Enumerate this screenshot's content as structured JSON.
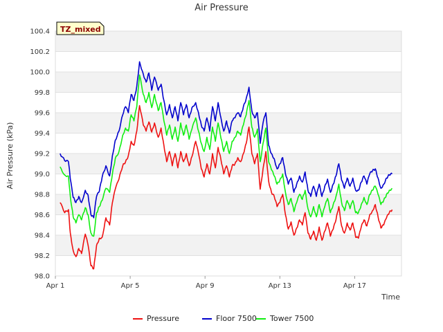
{
  "chart_data": {
    "type": "line",
    "title": "Air Pressure",
    "xlabel": "Time",
    "ylabel": "Air Pressure (kPa)",
    "badge": "TZ_mixed",
    "x_units": "days since Apr 1",
    "xlim": [
      0,
      18.5
    ],
    "ylim": [
      98.0,
      100.4
    ],
    "yticks": [
      98.0,
      98.2,
      98.4,
      98.6,
      98.8,
      99.0,
      99.2,
      99.4,
      99.6,
      99.8,
      100.0,
      100.2,
      100.4
    ],
    "ytick_labels": [
      "98.0",
      "98.2",
      "98.4",
      "98.6",
      "98.8",
      "99.0",
      "99.2",
      "99.4",
      "99.6",
      "99.8",
      "100.0",
      "100.2",
      "100.4"
    ],
    "xticks": [
      0,
      4,
      8,
      12,
      16
    ],
    "xtick_labels": [
      "Apr 1",
      "Apr 5",
      "Apr 9",
      "Apr 13",
      "Apr 17"
    ],
    "series": [
      {
        "name": "Pressure",
        "color": "#ee1111",
        "x": [
          0.25,
          0.5,
          0.7,
          0.8,
          0.95,
          1.1,
          1.25,
          1.4,
          1.6,
          1.75,
          1.9,
          2.05,
          2.2,
          2.35,
          2.5,
          2.7,
          2.9,
          3.05,
          3.2,
          3.4,
          3.6,
          3.75,
          3.9,
          4.05,
          4.2,
          4.35,
          4.5,
          4.7,
          4.85,
          5.0,
          5.15,
          5.3,
          5.5,
          5.65,
          5.8,
          5.95,
          6.1,
          6.25,
          6.4,
          6.55,
          6.7,
          6.85,
          7.0,
          7.15,
          7.3,
          7.5,
          7.65,
          7.8,
          7.95,
          8.1,
          8.25,
          8.4,
          8.55,
          8.7,
          8.85,
          9.0,
          9.15,
          9.3,
          9.45,
          9.6,
          9.75,
          9.9,
          10.05,
          10.2,
          10.35,
          10.5,
          10.65,
          10.8,
          10.95,
          11.1,
          11.25,
          11.4,
          11.55,
          11.7,
          11.85,
          12.0,
          12.15,
          12.3,
          12.45,
          12.6,
          12.75,
          12.9,
          13.05,
          13.2,
          13.35,
          13.5,
          13.65,
          13.8,
          13.95,
          14.1,
          14.25,
          14.4,
          14.55,
          14.7,
          14.85,
          15.0,
          15.15,
          15.3,
          15.45,
          15.6,
          15.75,
          15.9,
          16.05,
          16.2,
          16.35,
          16.5,
          16.65,
          16.8,
          16.95,
          17.1,
          17.25,
          17.4,
          17.55,
          17.7,
          17.85,
          18.0
        ],
        "values": [
          98.72,
          98.62,
          98.65,
          98.42,
          98.25,
          98.19,
          98.27,
          98.22,
          98.41,
          98.3,
          98.1,
          98.07,
          98.3,
          98.37,
          98.38,
          98.57,
          98.5,
          98.72,
          98.85,
          98.95,
          99.08,
          99.12,
          99.18,
          99.32,
          99.28,
          99.42,
          99.67,
          99.48,
          99.42,
          99.51,
          99.41,
          99.5,
          99.36,
          99.45,
          99.28,
          99.12,
          99.22,
          99.08,
          99.2,
          99.06,
          99.22,
          99.12,
          99.2,
          99.08,
          99.17,
          99.32,
          99.2,
          99.05,
          98.97,
          99.1,
          99.0,
          99.2,
          99.06,
          99.26,
          99.14,
          99.0,
          99.08,
          98.97,
          99.08,
          99.1,
          99.16,
          99.12,
          99.2,
          99.3,
          99.46,
          99.2,
          99.1,
          99.2,
          98.85,
          99.05,
          99.22,
          98.93,
          98.82,
          98.78,
          98.68,
          98.72,
          98.8,
          98.6,
          98.46,
          98.53,
          98.4,
          98.47,
          98.55,
          98.5,
          98.62,
          98.42,
          98.36,
          98.44,
          98.35,
          98.48,
          98.35,
          98.44,
          98.52,
          98.39,
          98.46,
          98.55,
          98.68,
          98.49,
          98.42,
          98.52,
          98.45,
          98.52,
          98.38,
          98.37,
          98.48,
          98.55,
          98.49,
          98.6,
          98.64,
          98.7,
          98.58,
          98.47,
          98.5,
          98.57,
          98.62,
          98.65
        ]
      },
      {
        "name": "Floor 7500",
        "color": "#0000cc",
        "x": [
          0.25,
          0.5,
          0.7,
          0.8,
          0.95,
          1.1,
          1.25,
          1.4,
          1.6,
          1.75,
          1.9,
          2.05,
          2.2,
          2.35,
          2.5,
          2.7,
          2.9,
          3.05,
          3.2,
          3.4,
          3.6,
          3.75,
          3.9,
          4.05,
          4.2,
          4.35,
          4.5,
          4.7,
          4.85,
          5.0,
          5.15,
          5.3,
          5.5,
          5.65,
          5.8,
          5.95,
          6.1,
          6.25,
          6.4,
          6.55,
          6.7,
          6.85,
          7.0,
          7.15,
          7.3,
          7.5,
          7.65,
          7.8,
          7.95,
          8.1,
          8.25,
          8.4,
          8.55,
          8.7,
          8.85,
          9.0,
          9.15,
          9.3,
          9.45,
          9.6,
          9.75,
          9.9,
          10.05,
          10.2,
          10.35,
          10.5,
          10.65,
          10.8,
          10.95,
          11.1,
          11.25,
          11.4,
          11.55,
          11.7,
          11.85,
          12.0,
          12.15,
          12.3,
          12.45,
          12.6,
          12.75,
          12.9,
          13.05,
          13.2,
          13.35,
          13.5,
          13.65,
          13.8,
          13.95,
          14.1,
          14.25,
          14.4,
          14.55,
          14.7,
          14.85,
          15.0,
          15.15,
          15.3,
          15.45,
          15.6,
          15.75,
          15.9,
          16.05,
          16.2,
          16.35,
          16.5,
          16.65,
          16.8,
          16.95,
          17.1,
          17.25,
          17.4,
          17.55,
          17.7,
          17.85,
          18.0
        ],
        "values": [
          99.2,
          99.13,
          99.12,
          98.95,
          98.77,
          98.72,
          98.78,
          98.72,
          98.84,
          98.79,
          98.6,
          98.57,
          98.78,
          98.83,
          98.97,
          99.08,
          98.98,
          99.18,
          99.33,
          99.42,
          99.58,
          99.66,
          99.6,
          99.78,
          99.72,
          99.86,
          100.1,
          99.98,
          99.9,
          99.99,
          99.82,
          99.95,
          99.82,
          99.88,
          99.72,
          99.58,
          99.68,
          99.55,
          99.66,
          99.52,
          99.7,
          99.58,
          99.68,
          99.55,
          99.65,
          99.7,
          99.6,
          99.48,
          99.42,
          99.55,
          99.42,
          99.66,
          99.52,
          99.7,
          99.55,
          99.42,
          99.52,
          99.4,
          99.52,
          99.55,
          99.6,
          99.56,
          99.66,
          99.74,
          99.85,
          99.62,
          99.55,
          99.6,
          99.3,
          99.5,
          99.6,
          99.28,
          99.2,
          99.15,
          99.05,
          99.1,
          99.16,
          99.0,
          98.9,
          98.96,
          98.82,
          98.9,
          98.98,
          98.92,
          99.02,
          98.84,
          98.78,
          98.88,
          98.78,
          98.9,
          98.78,
          98.88,
          98.95,
          98.82,
          98.9,
          98.98,
          99.1,
          98.94,
          98.86,
          98.96,
          98.88,
          98.96,
          98.84,
          98.84,
          98.92,
          98.98,
          98.9,
          99.0,
          99.03,
          99.05,
          98.96,
          98.86,
          98.9,
          98.96,
          98.99,
          99.0
        ]
      },
      {
        "name": "Tower 7500",
        "color": "#11ee11",
        "x": [
          0.25,
          0.5,
          0.7,
          0.8,
          0.95,
          1.1,
          1.25,
          1.4,
          1.6,
          1.75,
          1.9,
          2.05,
          2.2,
          2.35,
          2.5,
          2.7,
          2.9,
          3.05,
          3.2,
          3.4,
          3.6,
          3.75,
          3.9,
          4.05,
          4.2,
          4.35,
          4.5,
          4.7,
          4.85,
          5.0,
          5.15,
          5.3,
          5.5,
          5.65,
          5.8,
          5.95,
          6.1,
          6.25,
          6.4,
          6.55,
          6.7,
          6.85,
          7.0,
          7.15,
          7.3,
          7.5,
          7.65,
          7.8,
          7.95,
          8.1,
          8.25,
          8.4,
          8.55,
          8.7,
          8.85,
          9.0,
          9.15,
          9.3,
          9.45,
          9.6,
          9.75,
          9.9,
          10.05,
          10.2,
          10.35,
          10.5,
          10.65,
          10.8,
          10.95,
          11.1,
          11.25,
          11.4,
          11.55,
          11.7,
          11.85,
          12.0,
          12.15,
          12.3,
          12.45,
          12.6,
          12.75,
          12.9,
          13.05,
          13.2,
          13.35,
          13.5,
          13.65,
          13.8,
          13.95,
          14.1,
          14.25,
          14.4,
          14.55,
          14.7,
          14.85,
          15.0,
          15.15,
          15.3,
          15.45,
          15.6,
          15.75,
          15.9,
          16.05,
          16.2,
          16.35,
          16.5,
          16.65,
          16.8,
          16.95,
          17.1,
          17.25,
          17.4,
          17.55,
          17.7,
          17.85,
          18.0
        ],
        "values": [
          99.07,
          98.99,
          98.98,
          98.78,
          98.58,
          98.52,
          98.6,
          98.55,
          98.67,
          98.6,
          98.42,
          98.39,
          98.62,
          98.68,
          98.74,
          98.86,
          98.82,
          99.0,
          99.15,
          99.22,
          99.38,
          99.45,
          99.42,
          99.58,
          99.52,
          99.66,
          99.97,
          99.78,
          99.7,
          99.8,
          99.65,
          99.78,
          99.62,
          99.7,
          99.52,
          99.38,
          99.48,
          99.34,
          99.46,
          99.32,
          99.5,
          99.38,
          99.48,
          99.34,
          99.44,
          99.55,
          99.42,
          99.3,
          99.22,
          99.36,
          99.24,
          99.46,
          99.32,
          99.5,
          99.35,
          99.22,
          99.32,
          99.2,
          99.32,
          99.36,
          99.42,
          99.38,
          99.48,
          99.58,
          99.72,
          99.46,
          99.36,
          99.44,
          99.12,
          99.3,
          99.45,
          99.12,
          99.04,
          98.98,
          98.9,
          98.94,
          99.0,
          98.82,
          98.7,
          98.76,
          98.63,
          98.72,
          98.8,
          98.75,
          98.84,
          98.66,
          98.58,
          98.68,
          98.58,
          98.7,
          98.58,
          98.68,
          98.76,
          98.62,
          98.7,
          98.78,
          98.9,
          98.72,
          98.64,
          98.74,
          98.66,
          98.74,
          98.62,
          98.62,
          98.7,
          98.77,
          98.7,
          98.8,
          98.84,
          98.88,
          98.8,
          98.7,
          98.74,
          98.8,
          98.84,
          98.86
        ]
      }
    ]
  }
}
